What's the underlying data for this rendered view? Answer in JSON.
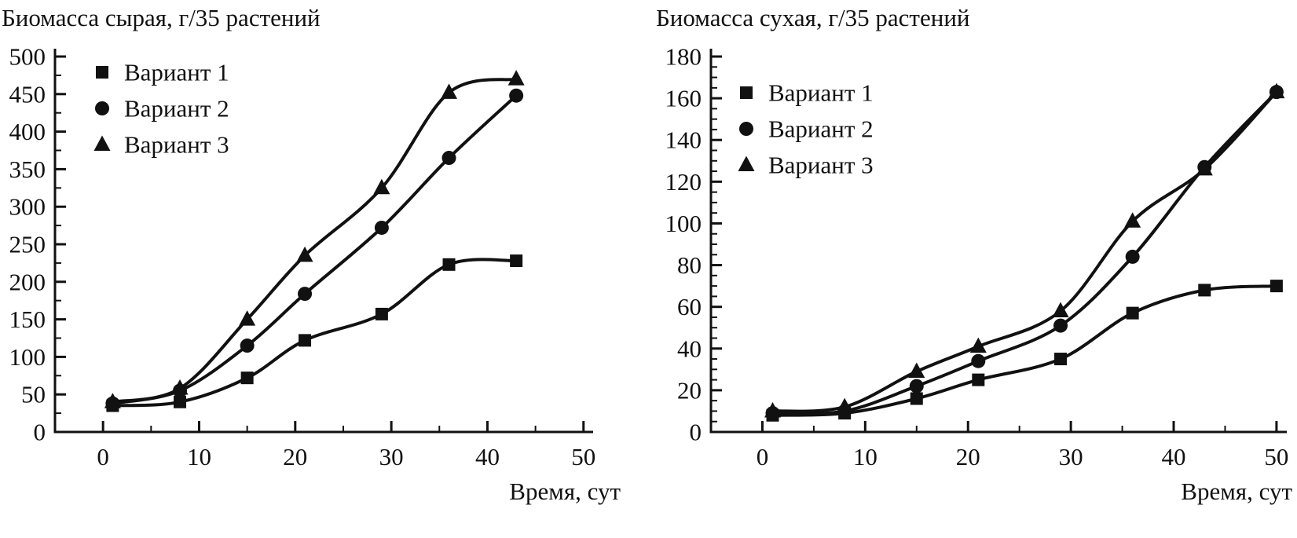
{
  "figure": {
    "background": "#ffffff",
    "ink": "#111111"
  },
  "chart_data": [
    {
      "type": "line",
      "title": "Биомасса сырая, г/35 растений",
      "xlabel": "Время, сут",
      "ylabel": "",
      "xlim": [
        -5,
        51
      ],
      "ylim": [
        0,
        500
      ],
      "x_tick_labels": [
        0,
        10,
        20,
        30,
        40,
        50
      ],
      "y_tick_labels": [
        0,
        50,
        100,
        150,
        200,
        250,
        300,
        350,
        400,
        450,
        500
      ],
      "x_minor_step": 5,
      "y_major_step": 50,
      "y_minor_step": 25,
      "grid": false,
      "legend_position": "top-left",
      "x": [
        1,
        8,
        15,
        21,
        29,
        36,
        43
      ],
      "series": [
        {
          "name": "Вариант 1",
          "marker": "square",
          "values": [
            35,
            40,
            72,
            122,
            157,
            223,
            228
          ]
        },
        {
          "name": "Вариант 2",
          "marker": "circle",
          "values": [
            38,
            55,
            115,
            184,
            272,
            365,
            448
          ]
        },
        {
          "name": "Вариант 3",
          "marker": "triangle",
          "values": [
            40,
            58,
            150,
            235,
            325,
            452,
            470
          ]
        }
      ]
    },
    {
      "type": "line",
      "title": "Биомасса сухая, г/35 растений",
      "xlabel": "Время, сут",
      "ylabel": "",
      "xlim": [
        -5,
        51
      ],
      "ylim": [
        0,
        180
      ],
      "x_tick_labels": [
        0,
        10,
        20,
        30,
        40,
        50
      ],
      "y_tick_labels": [
        0,
        20,
        40,
        60,
        80,
        100,
        120,
        140,
        160,
        180
      ],
      "x_minor_step": 5,
      "y_major_step": 20,
      "y_minor_step": 5,
      "grid": false,
      "legend_position": "top-left",
      "x": [
        1,
        8,
        15,
        21,
        29,
        36,
        43,
        50
      ],
      "series": [
        {
          "name": "Вариант 1",
          "marker": "square",
          "values": [
            8,
            9,
            16,
            25,
            35,
            57,
            68,
            70
          ]
        },
        {
          "name": "Вариант 2",
          "marker": "circle",
          "values": [
            9,
            10,
            22,
            34,
            51,
            84,
            127,
            163
          ]
        },
        {
          "name": "Вариант 3",
          "marker": "triangle",
          "values": [
            10,
            12,
            29,
            41,
            58,
            101,
            126,
            163
          ]
        }
      ]
    }
  ]
}
